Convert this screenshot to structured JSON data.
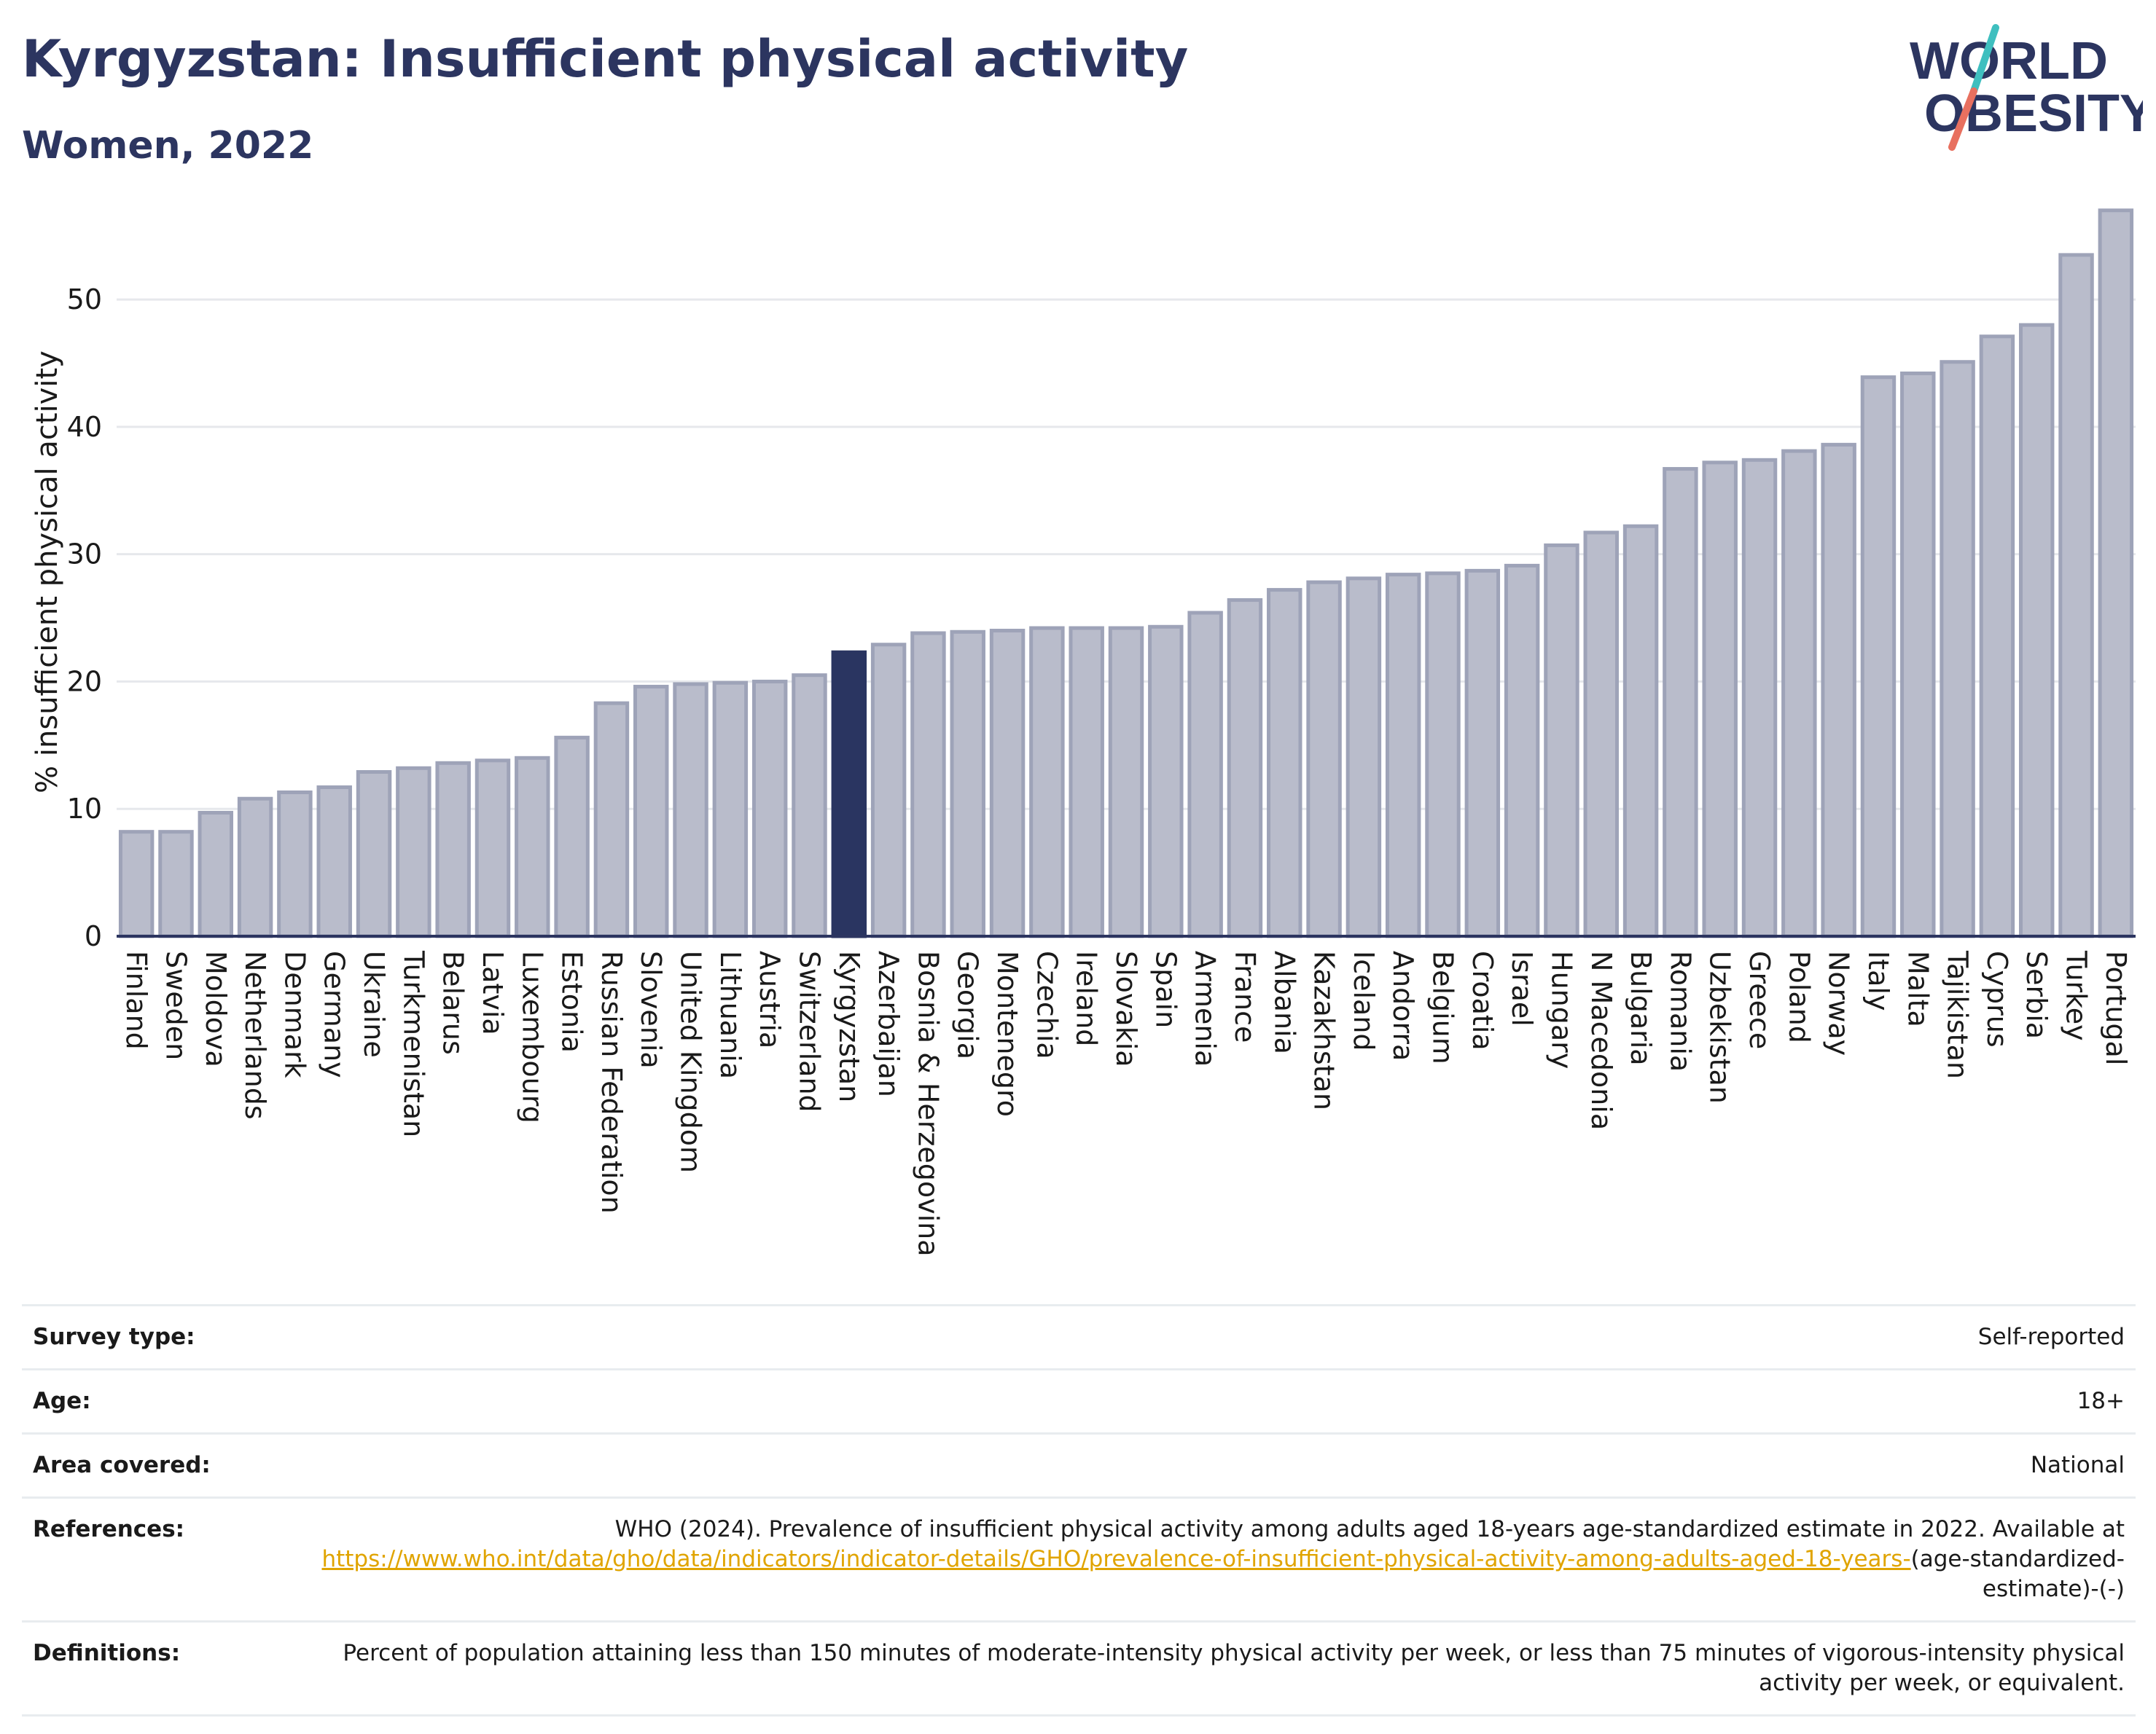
{
  "header": {
    "title": "Kyrgyzstan: Insufficient physical activity",
    "subtitle": "Women, 2022"
  },
  "logo": {
    "line1": "WORLD",
    "line2": "OBESITY"
  },
  "colors": {
    "bar": "#b9bccb",
    "bar_border": "#9ea3b8",
    "highlight": "#2a3561",
    "axis": "#2c3560"
  },
  "chart_data": {
    "type": "bar",
    "title": "Kyrgyzstan: Insufficient physical activity",
    "subtitle": "Women, 2022",
    "xlabel": "",
    "ylabel": "% insufficient physical activity",
    "ylim": [
      0,
      57.5
    ],
    "yticks": [
      0,
      10,
      20,
      30,
      40,
      50
    ],
    "grid": true,
    "highlight": "Kyrgyzstan",
    "categories": [
      "Finland",
      "Sweden",
      "Moldova",
      "Netherlands",
      "Denmark",
      "Germany",
      "Ukraine",
      "Turkmenistan",
      "Belarus",
      "Latvia",
      "Luxembourg",
      "Estonia",
      "Russian Federation",
      "Slovenia",
      "United Kingdom",
      "Lithuania",
      "Austria",
      "Switzerland",
      "Kyrgyzstan",
      "Azerbaijan",
      "Bosnia & Herzegovina",
      "Georgia",
      "Montenegro",
      "Czechia",
      "Ireland",
      "Slovakia",
      "Spain",
      "Armenia",
      "France",
      "Albania",
      "Kazakhstan",
      "Iceland",
      "Andorra",
      "Belgium",
      "Croatia",
      "Israel",
      "Hungary",
      "N Macedonia",
      "Bulgaria",
      "Romania",
      "Uzbekistan",
      "Greece",
      "Poland",
      "Norway",
      "Italy",
      "Malta",
      "Tajikistan",
      "Cyprus",
      "Serbia",
      "Turkey",
      "Portugal"
    ],
    "values": [
      8.2,
      8.2,
      9.7,
      10.8,
      11.3,
      11.7,
      12.9,
      13.2,
      13.6,
      13.8,
      14.0,
      15.6,
      18.3,
      19.6,
      19.8,
      19.9,
      20.0,
      20.5,
      22.3,
      22.9,
      23.8,
      23.9,
      24.0,
      24.2,
      24.2,
      24.2,
      24.3,
      25.4,
      26.4,
      27.2,
      27.8,
      28.1,
      28.4,
      28.5,
      28.7,
      29.1,
      30.7,
      31.7,
      32.2,
      36.7,
      37.2,
      37.4,
      38.1,
      38.6,
      43.9,
      44.2,
      45.1,
      47.1,
      48.0,
      53.5,
      57.0
    ]
  },
  "meta": {
    "rows": [
      {
        "label": "Survey type:",
        "value": "Self-reported"
      },
      {
        "label": "Age:",
        "value": "18+"
      },
      {
        "label": "Area covered:",
        "value": "National"
      }
    ],
    "references": {
      "label": "References:",
      "text": "WHO (2024). Prevalence of insufficient physical activity among adults aged 18-years age-standardized estimate in 2022. Available at",
      "link": "https://www.who.int/data/gho/data/indicators/indicator-details/GHO/prevalence-of-insufficient-physical-activity-among-adults-aged-18-years-",
      "suffix": "(age-standardized-estimate)-(-)"
    },
    "definitions": {
      "label": "Definitions:",
      "value": "Percent of population attaining less than 150 minutes of moderate-intensity physical activity per week, or less than 75 minutes of vigorous-intensity physical activity per week, or equivalent."
    }
  }
}
